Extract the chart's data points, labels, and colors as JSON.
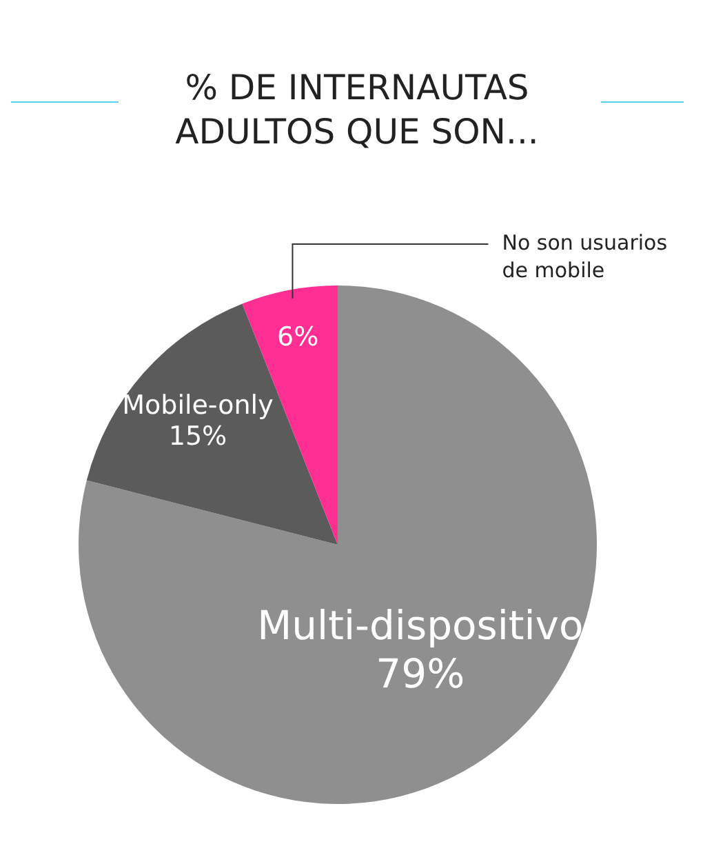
{
  "chart_data": {
    "type": "pie",
    "title": "% DE INTERNAUTAS ADULTOS QUE SON...",
    "categories": [
      "Multi-dispositivo",
      "Mobile-only",
      "No son usuarios de mobile"
    ],
    "values": [
      79,
      15,
      6
    ],
    "colors": [
      "#8f8f8f",
      "#5b5b5b",
      "#ff2e93"
    ],
    "value_labels": [
      "79%",
      "15%",
      "6%"
    ]
  }
}
